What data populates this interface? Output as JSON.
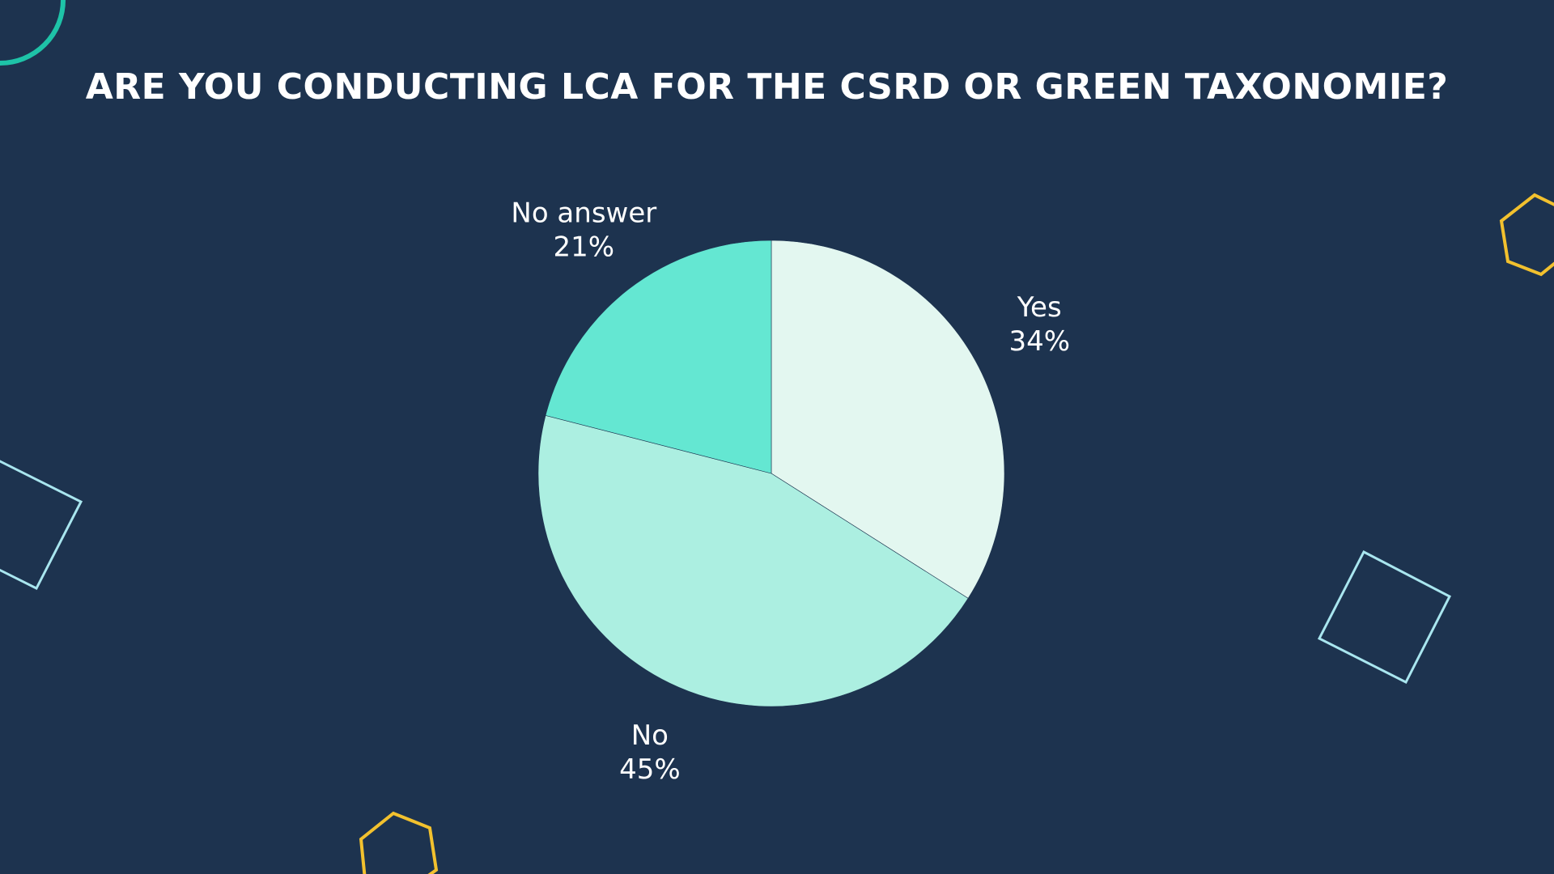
{
  "slide": {
    "title": "ARE YOU CONDUCTING LCA FOR THE CSRD OR GREEN TAXONOMIE?"
  },
  "colors": {
    "background": "#1d334f",
    "deco_teal": "#1ec3a8",
    "deco_yellow": "#f2c12e",
    "deco_light": "#a9e6ef"
  },
  "chart_data": {
    "type": "pie",
    "title": "ARE YOU CONDUCTING LCA FOR THE CSRD OR GREEN TAXONOMIE?",
    "legend": "none",
    "start_angle_deg": 0,
    "direction": "clockwise",
    "slices": [
      {
        "label": "Yes",
        "value": 34,
        "value_label": "34%",
        "color": "#e3f7f0"
      },
      {
        "label": "No",
        "value": 45,
        "value_label": "45%",
        "color": "#acefe1"
      },
      {
        "label": "No answer",
        "value": 21,
        "value_label": "21%",
        "color": "#64e7d2"
      }
    ]
  }
}
